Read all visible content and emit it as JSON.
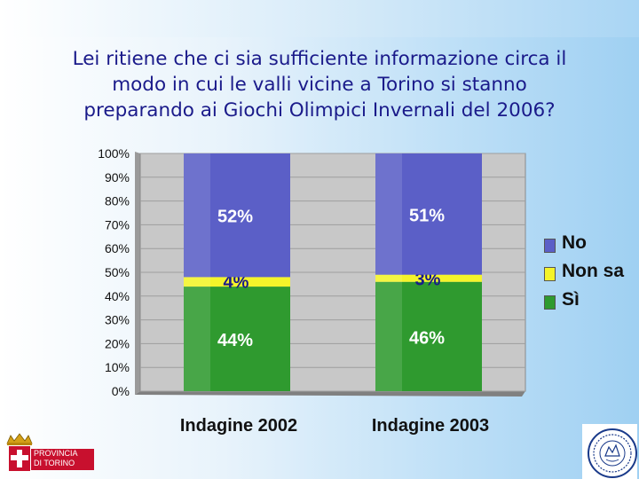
{
  "title_lines": [
    "Lei ritiene che ci sia sufficiente informazione circa il",
    "modo in cui le valli vicine a Torino si stanno",
    "preparando ai Giochi Olimpici Invernali del 2006?"
  ],
  "logo": {
    "line1": "PROVINCIA",
    "line2": "DI TORINO"
  },
  "chart_data": {
    "type": "bar",
    "stacked": true,
    "percent": true,
    "categories": [
      "Indagine 2002",
      "Indagine 2003"
    ],
    "series": [
      {
        "name": "Sì",
        "values": [
          44,
          46
        ],
        "labels": [
          "44%",
          "46%"
        ],
        "color": "#2f9a2f"
      },
      {
        "name": "Non sa",
        "values": [
          4,
          3
        ],
        "labels": [
          "4%",
          "3%"
        ],
        "color": "#f4f42a"
      },
      {
        "name": "No",
        "values": [
          52,
          51
        ],
        "labels": [
          "52%",
          "51%"
        ],
        "color": "#5b5fc7"
      }
    ],
    "legend_order": [
      "No",
      "Non sa",
      "Sì"
    ],
    "yticks": [
      "0%",
      "10%",
      "20%",
      "30%",
      "40%",
      "50%",
      "60%",
      "70%",
      "80%",
      "90%",
      "100%"
    ],
    "ylim": [
      0,
      100
    ],
    "grid": true,
    "legend_position": "right",
    "plot_background": "#c8c8c8",
    "data_label_color": "#ffffff",
    "small_segment_label_color": "#1a1a8a"
  }
}
